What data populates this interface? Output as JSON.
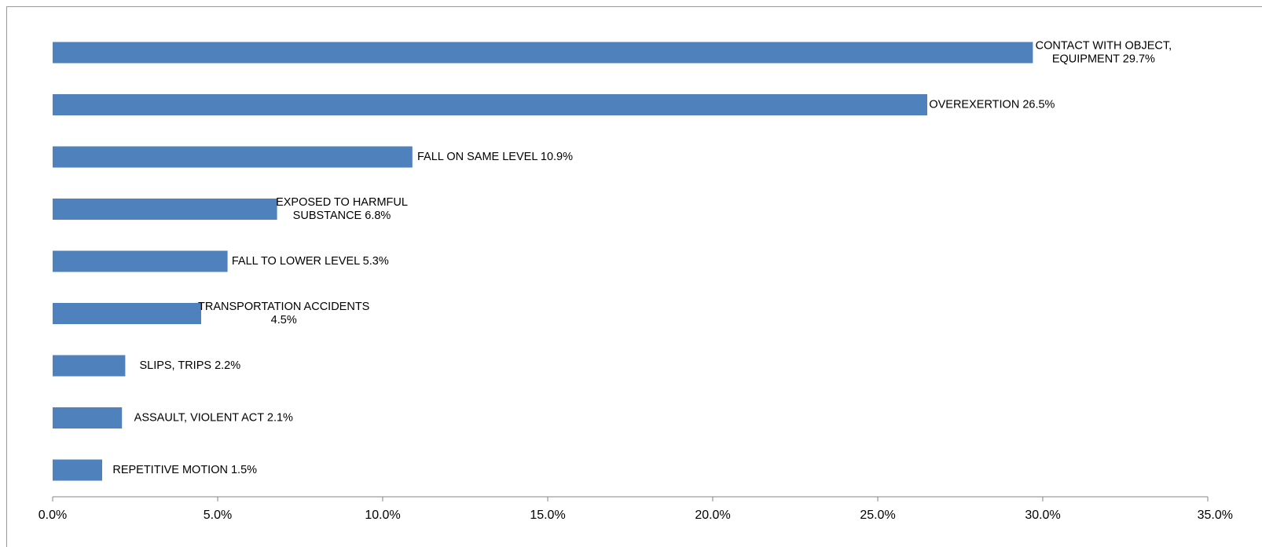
{
  "chart_data": {
    "type": "bar",
    "orientation": "horizontal",
    "title": "",
    "xlabel": "",
    "ylabel": "",
    "categories": [
      [
        "CONTACT WITH OBJECT,",
        "EQUIPMENT 29.7%"
      ],
      [
        "OVEREXERTION 26.5%"
      ],
      [
        "FALL ON SAME LEVEL 10.9%"
      ],
      [
        "EXPOSED TO HARMFUL",
        "SUBSTANCE 6.8%"
      ],
      [
        "FALL TO LOWER LEVEL 5.3%"
      ],
      [
        "TRANSPORTATION ACCIDENTS",
        "4.5%"
      ],
      [
        "SLIPS, TRIPS  2.2%"
      ],
      [
        "ASSAULT, VIOLENT ACT   2.1%"
      ],
      [
        "REPETITIVE MOTION   1.5%"
      ]
    ],
    "values": [
      29.7,
      26.5,
      10.9,
      6.8,
      5.3,
      4.5,
      2.2,
      2.1,
      1.5
    ],
    "xlim": [
      0,
      35
    ],
    "xticks": [
      0,
      5,
      10,
      15,
      20,
      25,
      30,
      35
    ],
    "xtick_labels": [
      "0.0%",
      "5.0%",
      "10.0%",
      "15.0%",
      "20.0%",
      "25.0%",
      "30.0%",
      "35.0%"
    ],
    "grid": false,
    "legend": "none",
    "bar_color": "#4f81bd",
    "axis_color": "#868686"
  }
}
